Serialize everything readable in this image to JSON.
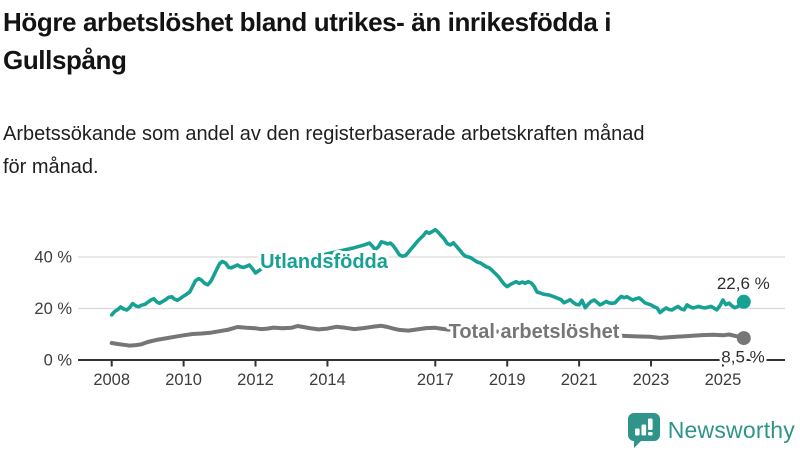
{
  "header": {
    "title_lines": [
      "Högre arbetslöshet bland utrikes- än inrikesfödda i",
      "Gullspång"
    ],
    "subtitle_lines": [
      "Arbetssökande som andel av den registerbaserade arbetskraften månad",
      "för månad."
    ]
  },
  "colors": {
    "accent_teal": "#16a194",
    "series_gray": "#767676",
    "gridline": "#d9d9d9",
    "axis": "#333333",
    "tick_text": "#3d3d3d",
    "value_text": "#2e2e2e",
    "brand": "#2f9489"
  },
  "chart_data": {
    "type": "line",
    "unit": "%",
    "grid": true,
    "legend_position": "inline-labels",
    "x_range": [
      2007.1,
      2026.7
    ],
    "y_range": [
      0,
      55
    ],
    "yticks": [
      {
        "v": 0,
        "label": "0 %"
      },
      {
        "v": 20,
        "label": "20 %"
      },
      {
        "v": 40,
        "label": "40 %"
      }
    ],
    "xticks": [
      {
        "v": 2008,
        "label": "2008"
      },
      {
        "v": 2010,
        "label": "2010"
      },
      {
        "v": 2012,
        "label": "2012"
      },
      {
        "v": 2014,
        "label": "2014"
      },
      {
        "v": 2017,
        "label": "2017"
      },
      {
        "v": 2019,
        "label": "2019"
      },
      {
        "v": 2021,
        "label": "2021"
      },
      {
        "v": 2023,
        "label": "2023"
      },
      {
        "v": 2025,
        "label": "2025"
      }
    ],
    "series": [
      {
        "name": "Utlandsfödda",
        "color": "#16a194",
        "end_label": "22,6 %",
        "end_value": 22.6,
        "points": [
          [
            2008.0,
            17.5
          ],
          [
            2008.08,
            18.8
          ],
          [
            2008.17,
            19.6
          ],
          [
            2008.25,
            20.6
          ],
          [
            2008.33,
            19.8
          ],
          [
            2008.42,
            19.4
          ],
          [
            2008.5,
            20.4
          ],
          [
            2008.58,
            21.9
          ],
          [
            2008.67,
            21.0
          ],
          [
            2008.75,
            20.7
          ],
          [
            2008.83,
            21.3
          ],
          [
            2008.92,
            21.6
          ],
          [
            2009.0,
            22.4
          ],
          [
            2009.08,
            23.2
          ],
          [
            2009.17,
            23.8
          ],
          [
            2009.25,
            22.6
          ],
          [
            2009.33,
            22.0
          ],
          [
            2009.42,
            22.8
          ],
          [
            2009.5,
            23.4
          ],
          [
            2009.58,
            24.3
          ],
          [
            2009.67,
            24.6
          ],
          [
            2009.75,
            23.6
          ],
          [
            2009.83,
            23.2
          ],
          [
            2009.92,
            24.0
          ],
          [
            2010.0,
            24.8
          ],
          [
            2010.08,
            25.5
          ],
          [
            2010.17,
            26.4
          ],
          [
            2010.25,
            28.6
          ],
          [
            2010.33,
            30.8
          ],
          [
            2010.42,
            31.6
          ],
          [
            2010.5,
            31.0
          ],
          [
            2010.58,
            29.8
          ],
          [
            2010.67,
            29.2
          ],
          [
            2010.75,
            30.4
          ],
          [
            2010.83,
            32.6
          ],
          [
            2010.92,
            35.2
          ],
          [
            2011.0,
            37.4
          ],
          [
            2011.08,
            38.3
          ],
          [
            2011.17,
            37.6
          ],
          [
            2011.25,
            36.0
          ],
          [
            2011.33,
            35.8
          ],
          [
            2011.42,
            36.4
          ],
          [
            2011.5,
            36.9
          ],
          [
            2011.58,
            36.2
          ],
          [
            2011.67,
            36.0
          ],
          [
            2011.75,
            36.4
          ],
          [
            2011.83,
            36.9
          ],
          [
            2011.92,
            35.4
          ],
          [
            2012.0,
            33.8
          ],
          [
            2012.17,
            35.4
          ],
          [
            2012.33,
            36.2
          ],
          [
            2012.5,
            36.8
          ],
          [
            2012.67,
            37.4
          ],
          [
            2012.83,
            37.8
          ],
          [
            2013.0,
            38.4
          ],
          [
            2013.25,
            39.2
          ],
          [
            2013.5,
            39.8
          ],
          [
            2013.75,
            40.4
          ],
          [
            2014.0,
            41.2
          ],
          [
            2014.25,
            42.0
          ],
          [
            2014.5,
            42.8
          ],
          [
            2014.75,
            43.6
          ],
          [
            2015.0,
            44.6
          ],
          [
            2015.17,
            45.4
          ],
          [
            2015.25,
            44.2
          ],
          [
            2015.33,
            42.9
          ],
          [
            2015.42,
            44.0
          ],
          [
            2015.5,
            45.9
          ],
          [
            2015.58,
            45.6
          ],
          [
            2015.67,
            45.1
          ],
          [
            2015.75,
            45.4
          ],
          [
            2015.83,
            44.4
          ],
          [
            2015.92,
            42.6
          ],
          [
            2016.0,
            40.9
          ],
          [
            2016.08,
            40.3
          ],
          [
            2016.17,
            40.6
          ],
          [
            2016.25,
            41.8
          ],
          [
            2016.33,
            43.2
          ],
          [
            2016.42,
            44.6
          ],
          [
            2016.5,
            46.0
          ],
          [
            2016.58,
            47.2
          ],
          [
            2016.67,
            48.4
          ],
          [
            2016.75,
            49.8
          ],
          [
            2016.83,
            49.2
          ],
          [
            2016.92,
            49.9
          ],
          [
            2017.0,
            50.6
          ],
          [
            2017.08,
            49.6
          ],
          [
            2017.17,
            48.2
          ],
          [
            2017.25,
            47.0
          ],
          [
            2017.33,
            45.2
          ],
          [
            2017.42,
            44.7
          ],
          [
            2017.5,
            45.5
          ],
          [
            2017.58,
            44.3
          ],
          [
            2017.67,
            42.8
          ],
          [
            2017.75,
            41.4
          ],
          [
            2017.83,
            40.4
          ],
          [
            2017.92,
            40.0
          ],
          [
            2018.0,
            39.6
          ],
          [
            2018.08,
            38.8
          ],
          [
            2018.17,
            38.0
          ],
          [
            2018.25,
            37.7
          ],
          [
            2018.33,
            37.0
          ],
          [
            2018.42,
            36.2
          ],
          [
            2018.5,
            35.8
          ],
          [
            2018.58,
            34.8
          ],
          [
            2018.67,
            33.6
          ],
          [
            2018.75,
            32.5
          ],
          [
            2018.83,
            31.0
          ],
          [
            2018.92,
            29.4
          ],
          [
            2019.0,
            28.5
          ],
          [
            2019.08,
            29.3
          ],
          [
            2019.17,
            29.9
          ],
          [
            2019.25,
            30.4
          ],
          [
            2019.33,
            29.8
          ],
          [
            2019.42,
            30.3
          ],
          [
            2019.5,
            29.8
          ],
          [
            2019.58,
            30.4
          ],
          [
            2019.67,
            29.9
          ],
          [
            2019.75,
            28.6
          ],
          [
            2019.83,
            26.4
          ],
          [
            2019.92,
            26.0
          ],
          [
            2020.0,
            25.6
          ],
          [
            2020.17,
            25.2
          ],
          [
            2020.33,
            24.4
          ],
          [
            2020.5,
            23.4
          ],
          [
            2020.58,
            22.2
          ],
          [
            2020.67,
            22.8
          ],
          [
            2020.75,
            23.4
          ],
          [
            2020.83,
            22.4
          ],
          [
            2020.92,
            21.6
          ],
          [
            2021.0,
            21.4
          ],
          [
            2021.08,
            23.2
          ],
          [
            2021.17,
            20.3
          ],
          [
            2021.25,
            21.6
          ],
          [
            2021.33,
            22.7
          ],
          [
            2021.42,
            23.3
          ],
          [
            2021.5,
            22.4
          ],
          [
            2021.58,
            21.4
          ],
          [
            2021.67,
            22.0
          ],
          [
            2021.75,
            22.7
          ],
          [
            2021.83,
            22.2
          ],
          [
            2021.92,
            22.0
          ],
          [
            2022.0,
            22.2
          ],
          [
            2022.08,
            23.4
          ],
          [
            2022.17,
            24.7
          ],
          [
            2022.25,
            24.2
          ],
          [
            2022.33,
            24.6
          ],
          [
            2022.42,
            23.8
          ],
          [
            2022.5,
            23.3
          ],
          [
            2022.58,
            23.8
          ],
          [
            2022.67,
            24.1
          ],
          [
            2022.75,
            23.2
          ],
          [
            2022.83,
            22.2
          ],
          [
            2022.92,
            21.8
          ],
          [
            2023.0,
            21.4
          ],
          [
            2023.08,
            20.7
          ],
          [
            2023.17,
            20.2
          ],
          [
            2023.25,
            18.4
          ],
          [
            2023.33,
            19.3
          ],
          [
            2023.42,
            20.2
          ],
          [
            2023.5,
            19.6
          ],
          [
            2023.58,
            19.4
          ],
          [
            2023.67,
            20.2
          ],
          [
            2023.75,
            20.8
          ],
          [
            2023.83,
            19.9
          ],
          [
            2023.92,
            19.5
          ],
          [
            2024.0,
            21.4
          ],
          [
            2024.08,
            20.7
          ],
          [
            2024.17,
            20.2
          ],
          [
            2024.25,
            20.5
          ],
          [
            2024.33,
            20.8
          ],
          [
            2024.42,
            20.4
          ],
          [
            2024.5,
            20.2
          ],
          [
            2024.58,
            20.5
          ],
          [
            2024.67,
            20.8
          ],
          [
            2024.75,
            20.2
          ],
          [
            2024.83,
            19.5
          ],
          [
            2024.92,
            21.2
          ],
          [
            2025.0,
            23.3
          ],
          [
            2025.08,
            21.5
          ],
          [
            2025.17,
            22.1
          ],
          [
            2025.25,
            21.0
          ],
          [
            2025.33,
            20.3
          ],
          [
            2025.42,
            20.8
          ],
          [
            2025.5,
            21.6
          ],
          [
            2025.58,
            22.6
          ]
        ]
      },
      {
        "name": "Total arbetslöshet",
        "color": "#767676",
        "end_label": "8,5 %",
        "end_value": 8.5,
        "points": [
          [
            2008.0,
            6.6
          ],
          [
            2008.17,
            6.2
          ],
          [
            2008.33,
            5.9
          ],
          [
            2008.5,
            5.6
          ],
          [
            2008.67,
            5.8
          ],
          [
            2008.83,
            6.1
          ],
          [
            2009.0,
            7.0
          ],
          [
            2009.25,
            7.8
          ],
          [
            2009.5,
            8.4
          ],
          [
            2009.75,
            9.0
          ],
          [
            2010.0,
            9.6
          ],
          [
            2010.25,
            10.1
          ],
          [
            2010.5,
            10.3
          ],
          [
            2010.75,
            10.6
          ],
          [
            2011.0,
            11.2
          ],
          [
            2011.25,
            11.8
          ],
          [
            2011.5,
            12.8
          ],
          [
            2011.75,
            12.5
          ],
          [
            2012.0,
            12.3
          ],
          [
            2012.17,
            12.0
          ],
          [
            2012.33,
            12.2
          ],
          [
            2012.5,
            12.6
          ],
          [
            2012.75,
            12.3
          ],
          [
            2013.0,
            12.5
          ],
          [
            2013.17,
            13.2
          ],
          [
            2013.33,
            12.8
          ],
          [
            2013.5,
            12.4
          ],
          [
            2013.75,
            11.9
          ],
          [
            2014.0,
            12.2
          ],
          [
            2014.25,
            12.9
          ],
          [
            2014.5,
            12.5
          ],
          [
            2014.75,
            12.0
          ],
          [
            2015.0,
            12.4
          ],
          [
            2015.25,
            12.9
          ],
          [
            2015.5,
            13.3
          ],
          [
            2015.67,
            12.8
          ],
          [
            2015.83,
            12.2
          ],
          [
            2016.0,
            11.7
          ],
          [
            2016.25,
            11.4
          ],
          [
            2016.5,
            11.9
          ],
          [
            2016.75,
            12.4
          ],
          [
            2017.0,
            12.5
          ],
          [
            2017.25,
            12.0
          ],
          [
            2017.5,
            11.6
          ],
          [
            2017.75,
            11.3
          ],
          [
            2018.0,
            11.5
          ],
          [
            2018.25,
            11.9
          ],
          [
            2018.5,
            11.4
          ],
          [
            2018.75,
            11.0
          ],
          [
            2019.0,
            10.8
          ],
          [
            2019.5,
            10.4
          ],
          [
            2020.0,
            10.9
          ],
          [
            2020.5,
            10.6
          ],
          [
            2021.0,
            10.2
          ],
          [
            2021.5,
            9.8
          ],
          [
            2022.0,
            9.5
          ],
          [
            2022.5,
            9.2
          ],
          [
            2023.0,
            9.0
          ],
          [
            2023.25,
            8.6
          ],
          [
            2023.5,
            8.8
          ],
          [
            2023.75,
            9.1
          ],
          [
            2024.0,
            9.3
          ],
          [
            2024.25,
            9.5
          ],
          [
            2024.5,
            9.7
          ],
          [
            2024.75,
            9.8
          ],
          [
            2025.0,
            9.6
          ],
          [
            2025.17,
            9.9
          ],
          [
            2025.33,
            9.4
          ],
          [
            2025.5,
            8.9
          ],
          [
            2025.58,
            8.5
          ]
        ]
      }
    ]
  },
  "footer": {
    "brand": "Newsworthy"
  }
}
